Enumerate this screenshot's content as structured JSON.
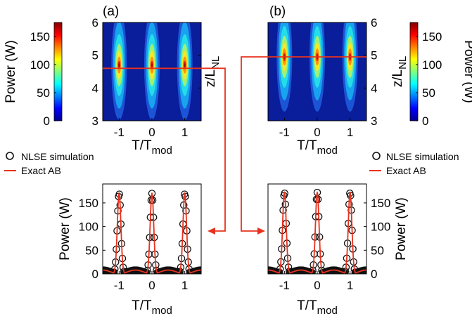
{
  "figure": {
    "panel_a_label": "(a)",
    "panel_b_label": "(b)",
    "colorbar_ylabel": "Power (W)",
    "map_ylabel_main": "z/L",
    "map_ylabel_sub": "NL",
    "xlabel_main": "T/T",
    "xlabel_sub": "mod",
    "lineplot_ylabel": "Power (W)",
    "legend_sim": "NLSE simulation",
    "legend_exact": "Exact AB"
  },
  "colors": {
    "exact_line": "#e8321c",
    "cut_line": "#e8321c",
    "arrow": "#e8321c",
    "markers": "#111111"
  },
  "chart_data": [
    {
      "type": "heatmap",
      "panel": "(a)",
      "x": {
        "label": "T/Tmod",
        "range": [
          -1.5,
          1.5
        ],
        "ticks": [
          -1,
          0,
          1
        ]
      },
      "y": {
        "label": "z/LNL",
        "range": [
          3,
          6
        ],
        "ticks": [
          3,
          4,
          5,
          6
        ]
      },
      "colorbar": {
        "label": "Power (W)",
        "range": [
          0,
          175
        ],
        "ticks": [
          0,
          50,
          100,
          150
        ]
      },
      "peak_positions": [
        -1,
        0,
        1
      ],
      "peak_z": 4.7,
      "peak_power": 175,
      "cut_z": 4.6
    },
    {
      "type": "heatmap",
      "panel": "(b)",
      "x": {
        "label": "T/Tmod",
        "range": [
          -1.5,
          1.5
        ],
        "ticks": [
          -1,
          0,
          1
        ]
      },
      "y": {
        "label": "z/LNL",
        "range": [
          3,
          6
        ],
        "ticks": [
          3,
          4,
          5,
          6
        ]
      },
      "colorbar": {
        "label": "Power (W)",
        "range": [
          0,
          175
        ],
        "ticks": [
          0,
          50,
          100,
          150
        ]
      },
      "peak_positions": [
        -1,
        0,
        1
      ],
      "peak_z": 4.95,
      "peak_power": 175,
      "cut_z": 4.95
    },
    {
      "type": "line",
      "panel": "(a) cut",
      "x": {
        "label": "T/Tmod",
        "range": [
          -1.5,
          1.5
        ],
        "ticks": [
          -1,
          0,
          1
        ]
      },
      "y": {
        "label": "Power (W)",
        "range": [
          0,
          190
        ],
        "ticks": [
          0,
          50,
          100,
          150
        ]
      },
      "legend": "top-left",
      "series": [
        {
          "name": "NLSE simulation",
          "style": "open-circle markers",
          "peak_positions": [
            -1,
            0,
            1
          ],
          "peak_power": 170,
          "min_power": 3,
          "side_lobe_power": 8
        },
        {
          "name": "Exact AB",
          "style": "red line",
          "peak_positions": [
            -1,
            0,
            1
          ],
          "peak_power": 170,
          "min_power": 0,
          "side_lobe_power": 8
        }
      ]
    },
    {
      "type": "line",
      "panel": "(b) cut",
      "x": {
        "label": "T/Tmod",
        "range": [
          -1.5,
          1.5
        ],
        "ticks": [
          -1,
          0,
          1
        ]
      },
      "y": {
        "label": "Power (W)",
        "range": [
          0,
          190
        ],
        "ticks": [
          0,
          50,
          100,
          150
        ]
      },
      "legend": "top-left",
      "series": [
        {
          "name": "NLSE simulation",
          "style": "open-circle markers",
          "peak_positions": [
            -1,
            0,
            1
          ],
          "peak_power": 172,
          "min_power": 3,
          "side_lobe_power": 8
        },
        {
          "name": "Exact AB",
          "style": "red line",
          "peak_positions": [
            -1,
            0,
            1
          ],
          "peak_power": 172,
          "min_power": 0,
          "side_lobe_power": 8
        }
      ]
    }
  ]
}
